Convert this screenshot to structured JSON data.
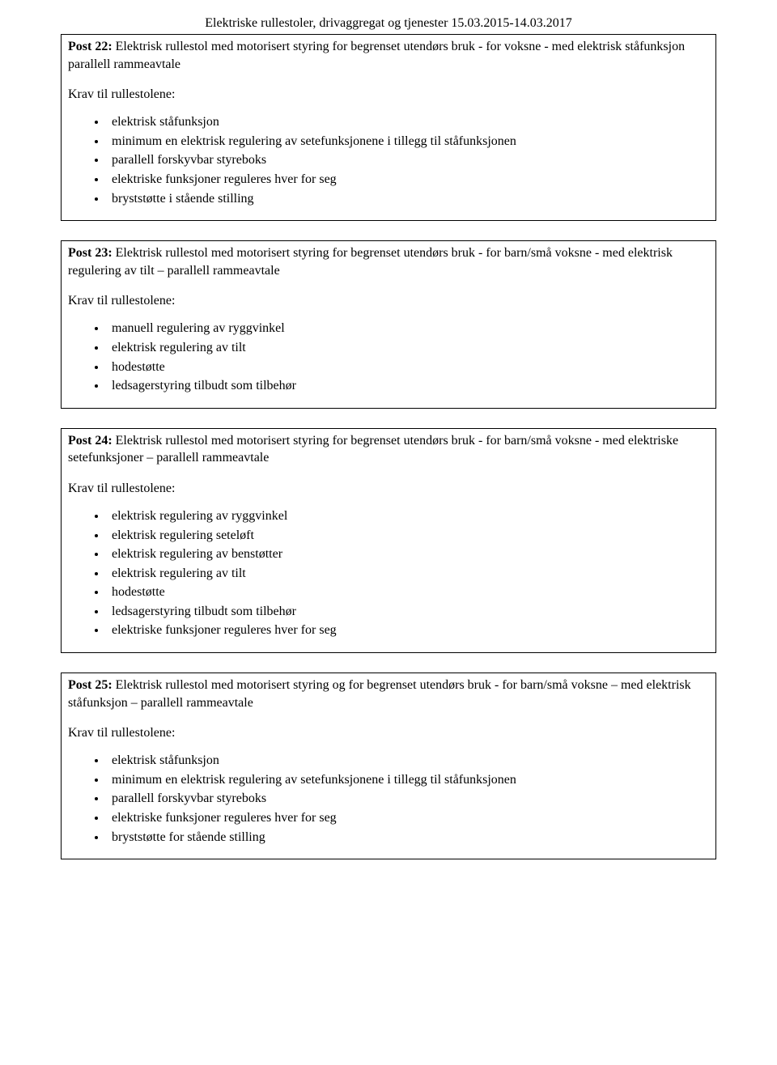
{
  "header": "Elektriske rullestoler, drivaggregat og tjenester 15.03.2015-14.03.2017",
  "posts": [
    {
      "title_bold": "Post 22:",
      "title_rest": " Elektrisk rullestol med motorisert styring for begrenset utendørs bruk - for voksne - med elektrisk ståfunksjon parallell rammeavtale",
      "subhead": "Krav til rullestolene:",
      "bullets": [
        "elektrisk ståfunksjon",
        "minimum en elektrisk regulering av setefunksjonene i tillegg til ståfunksjonen",
        "parallell forskyvbar styreboks",
        "elektriske funksjoner reguleres hver for seg",
        "bryststøtte i stående stilling"
      ]
    },
    {
      "title_bold": "Post 23:",
      "title_rest": " Elektrisk rullestol med motorisert styring for begrenset utendørs bruk - for barn/små voksne - med elektrisk regulering av tilt – parallell rammeavtale",
      "subhead": "Krav til rullestolene:",
      "bullets": [
        "manuell regulering av ryggvinkel",
        "elektrisk regulering av tilt",
        "hodestøtte",
        "ledsagerstyring tilbudt som tilbehør"
      ]
    },
    {
      "title_bold": "Post 24:",
      "title_rest": " Elektrisk rullestol med motorisert styring for begrenset utendørs bruk - for barn/små voksne - med elektriske setefunksjoner – parallell rammeavtale",
      "subhead": "Krav til rullestolene:",
      "bullets": [
        "elektrisk regulering av ryggvinkel",
        "elektrisk regulering seteløft",
        "elektrisk regulering av benstøtter",
        "elektrisk regulering av tilt",
        "hodestøtte",
        "ledsagerstyring tilbudt som tilbehør",
        "elektriske funksjoner reguleres hver for seg"
      ]
    },
    {
      "title_bold": "Post 25:",
      "title_rest": " Elektrisk rullestol med motorisert styring og for begrenset utendørs bruk - for barn/små voksne – med elektrisk ståfunksjon – parallell rammeavtale",
      "subhead": "Krav til rullestolene:",
      "bullets": [
        "elektrisk ståfunksjon",
        "minimum en elektrisk regulering av setefunksjonene i tillegg til ståfunksjonen",
        "parallell forskyvbar styreboks",
        "elektriske funksjoner reguleres hver for seg",
        "bryststøtte for stående stilling"
      ]
    }
  ]
}
